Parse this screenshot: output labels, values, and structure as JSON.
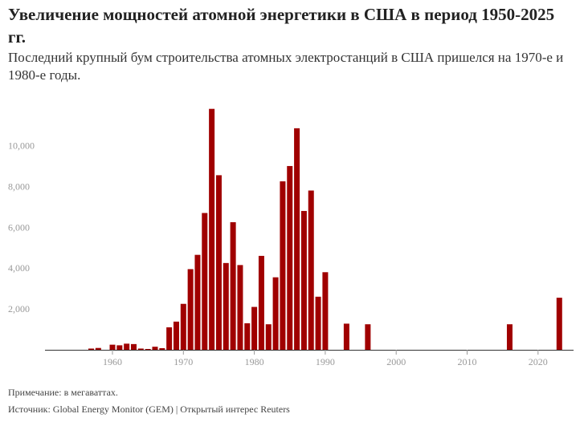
{
  "header": {
    "title": "Увеличение мощностей атомной энергетики в США в период 1950-2025 гг.",
    "subtitle": "Последний крупный бум строительства атомных электростанций в США пришелся на 1970-е и 1980-е годы."
  },
  "footer": {
    "note": "Примечание: в мегаваттах.",
    "source": "Источник: Global Energy Monitor (GEM) | Открытый интерес Reuters"
  },
  "colors": {
    "bar": "#a00000",
    "axis": "#333333",
    "tick": "#999999"
  },
  "chart_data": {
    "type": "bar",
    "title": "Увеличение мощностей атомной энергетики в США в период 1950-2025 гг.",
    "subtitle": "Последний крупный бум строительства атомных электростанций в США пришелся на 1970-е и 1980-е годы.",
    "xlabel": "",
    "ylabel": "",
    "xlim": [
      1950,
      2025
    ],
    "ylim": [
      0,
      12000
    ],
    "yticks": [
      2000,
      4000,
      6000,
      8000,
      10000
    ],
    "ytick_labels": [
      "2,000",
      "4,000",
      "6,000",
      "8,000",
      "10,000"
    ],
    "xticks": [
      1960,
      1970,
      1980,
      1990,
      2000,
      2010,
      2020
    ],
    "xtick_labels": [
      "1960",
      "1970",
      "1980",
      "1990",
      "2000",
      "2010",
      "2020"
    ],
    "grid": false,
    "legend": "none",
    "x": [
      1957,
      1958,
      1960,
      1961,
      1962,
      1963,
      1964,
      1965,
      1966,
      1967,
      1968,
      1969,
      1970,
      1971,
      1972,
      1973,
      1974,
      1975,
      1976,
      1977,
      1978,
      1979,
      1980,
      1981,
      1982,
      1983,
      1984,
      1985,
      1986,
      1987,
      1988,
      1989,
      1990,
      1993,
      1996,
      2016,
      2023
    ],
    "values": [
      60,
      90,
      250,
      220,
      300,
      280,
      60,
      40,
      150,
      80,
      1100,
      1380,
      2250,
      3950,
      4650,
      6700,
      11800,
      8550,
      4250,
      6250,
      4150,
      1300,
      2100,
      4600,
      1250,
      3550,
      8250,
      9000,
      10850,
      6800,
      7800,
      2600,
      3800,
      1280,
      1250,
      1250,
      2550
    ]
  }
}
